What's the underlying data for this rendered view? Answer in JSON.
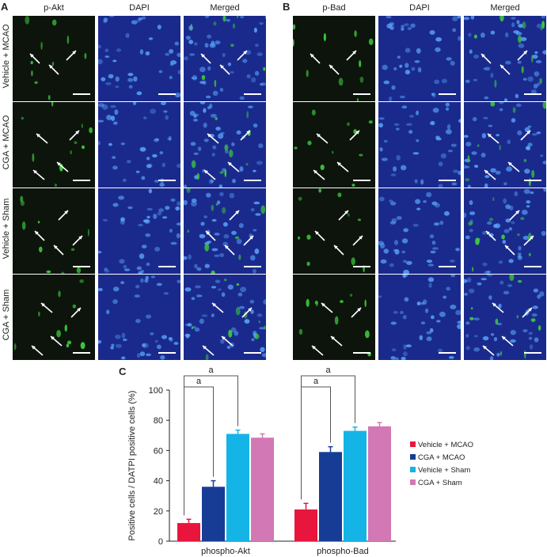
{
  "panels": {
    "A": {
      "letter": "A",
      "columns": [
        "p-Akt",
        "DAPI",
        "Merged"
      ],
      "rows": [
        "Vehicle + MCAO",
        "CGA + MCAO",
        "Vehicle + Sham",
        "CGA + Sham"
      ]
    },
    "B": {
      "letter": "B",
      "columns": [
        "p-Bad",
        "DAPI",
        "Merged"
      ]
    },
    "C": {
      "letter": "C"
    }
  },
  "colors": {
    "dapi": "#1a2a8c",
    "marker": "#3cc83c",
    "dark": "#0c140c"
  },
  "chart_data": {
    "type": "bar",
    "ylabel": "Positive cells / DATPI positive cells (%)",
    "ylim": [
      0,
      100
    ],
    "yticks": [
      0,
      20,
      40,
      60,
      80,
      100
    ],
    "categories": [
      "phospho-Akt",
      "phospho-Bad"
    ],
    "series": [
      {
        "name": "Vehicle + MCAO",
        "color": "#e8163c",
        "values": [
          12,
          21
        ],
        "errors": [
          2.5,
          4
        ]
      },
      {
        "name": "CGA + MCAO",
        "color": "#163c96",
        "values": [
          36,
          59
        ],
        "errors": [
          4,
          3.5
        ]
      },
      {
        "name": "Vehicle + Sham",
        "color": "#14b4e6",
        "values": [
          71,
          73
        ],
        "errors": [
          2.5,
          2.5
        ]
      },
      {
        "name": "CGA + Sham",
        "color": "#d278b4",
        "values": [
          68.5,
          76
        ],
        "errors": [
          2.5,
          2.5
        ]
      }
    ],
    "annotations": [
      "a",
      "a",
      "a",
      "a"
    ],
    "legend_position": "right"
  }
}
